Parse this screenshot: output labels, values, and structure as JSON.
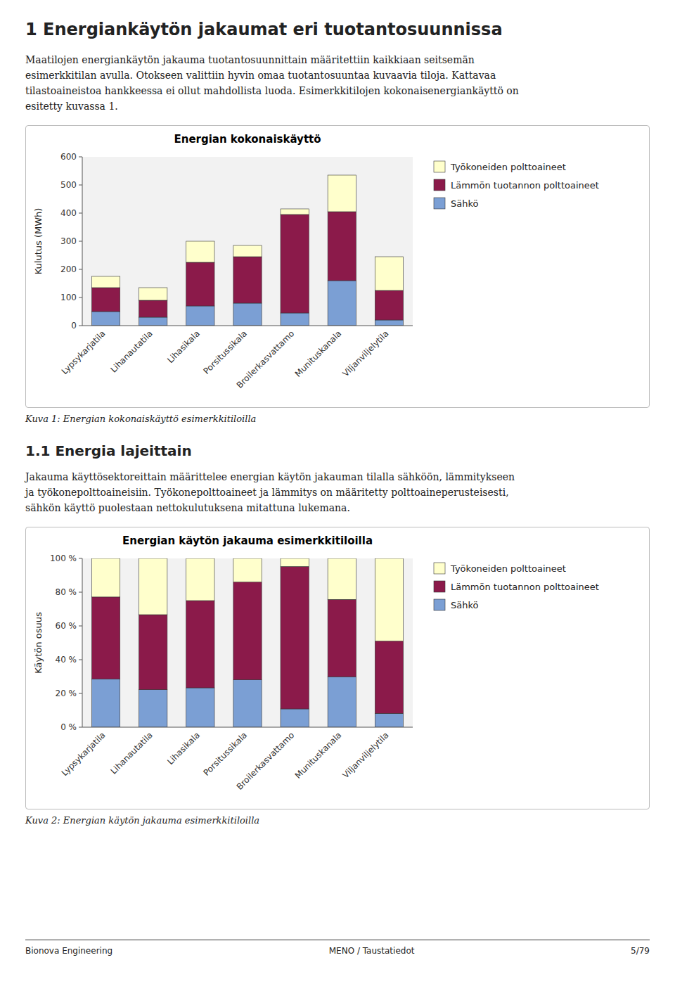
{
  "page_title": "1  Energiankäytön jakaumat eri tuotantosuunnissa",
  "page_text1_lines": [
    "Maatilojen energiankäytön jakauma tuotantosuunnittain määritettiin kaikkiaan seitsemän",
    "esimerkkitilan avulla. Otokseen valittiin hyvin omaa tuotantosuuntaa kuvaavia tiloja. Kattavaa",
    "tilastoaineistoa hankkeessa ei ollut mahdollista luoda. Esimerkkitilojen kokonaisenergiankäyttö on",
    "esitetty kuvassa 1."
  ],
  "section_title": "1.1  Energia lajeittain",
  "section_text_lines": [
    "Jakauma käyttösektoreittain määrittelee energian käytön jakauman tilalla sähköön, lämmitykseen",
    "ja työkonepolttoaineisiin. Työkonepolttoaineet ja lämmitys on määritetty polttoaineperusteisesti,",
    "sähkön käyttö puolestaan nettokulutuksena mitattuna lukemana."
  ],
  "footer_left": "Bionova Engineering",
  "footer_center": "MENO / Taustatiedot",
  "footer_right": "5/79",
  "chart_data": [
    {
      "type": "bar",
      "stacked": true,
      "grid": false,
      "legend": "right",
      "title": "Energian kokonaiskäyttö",
      "caption": "Kuva 1: Energian kokonaiskäyttö esimerkkitiloilla",
      "ylabel": "Kulutus (MWh)",
      "categories": [
        "Lypsykarjatila",
        "Lihanautatila",
        "Lihasikala",
        "Porsitussikala",
        "Broilerkasvattamo",
        "Munituskanala",
        "Viljanviljelytila"
      ],
      "series": [
        {
          "name": "Sähkö",
          "color": "#7b9fd4",
          "values": [
            50,
            30,
            70,
            80,
            45,
            160,
            20
          ]
        },
        {
          "name": "Lämmön tuotannon polttoaineet",
          "color": "#8b1a4a",
          "values": [
            85,
            60,
            155,
            165,
            350,
            245,
            105
          ]
        },
        {
          "name": "Työkoneiden polttoaineet",
          "color": "#ffffcc",
          "values": [
            40,
            45,
            75,
            40,
            20,
            130,
            120
          ]
        }
      ],
      "ylim": [
        0,
        600
      ],
      "yticks": [
        0,
        100,
        200,
        300,
        400,
        500,
        600
      ]
    },
    {
      "type": "bar",
      "stacked": true,
      "grid": false,
      "legend": "right",
      "title": "Energian käytön jakauma esimerkkitiloilla",
      "caption": "Kuva 2: Energian käytön jakauma esimerkkitiloilla",
      "ylabel": "Käytön osuus",
      "categories": [
        "Lypsykarjatila",
        "Lihanautatila",
        "Lihasikala",
        "Porsitussikala",
        "Broilerkasvattamo",
        "Munituskanala",
        "Viljanviljelytila"
      ],
      "series": [
        {
          "name": "Sähkö",
          "color": "#7b9fd4",
          "values": [
            28.5714285714286,
            22.2222222222222,
            23.3333333333333,
            28.0701754385965,
            10.8433734939759,
            29.9065420560748,
            8.16326530612245
          ]
        },
        {
          "name": "Lämmön tuotannon polttoaineet",
          "color": "#8b1a4a",
          "values": [
            48.5714285714286,
            44.4444444444444,
            51.6666666666667,
            57.8947368421053,
            84.3373493975904,
            45.7943925233645,
            42.8571428571429
          ]
        },
        {
          "name": "Työkoneiden polttoaineet",
          "color": "#ffffcc",
          "values": [
            22.8571428571429,
            33.3333333333333,
            25,
            14.0350877192982,
            4.81927710843373,
            24.2990654205607,
            48.9795918367347
          ]
        }
      ],
      "ylim": [
        0,
        100
      ],
      "yticks": [
        {
          "value": 0,
          "label": "0 %"
        },
        {
          "value": 20,
          "label": "20 %"
        },
        {
          "value": 40,
          "label": "40 %"
        },
        {
          "value": 60,
          "label": "60 %"
        },
        {
          "value": 80,
          "label": "80 %"
        },
        {
          "value": 100,
          "label": "100 %"
        }
      ]
    }
  ]
}
